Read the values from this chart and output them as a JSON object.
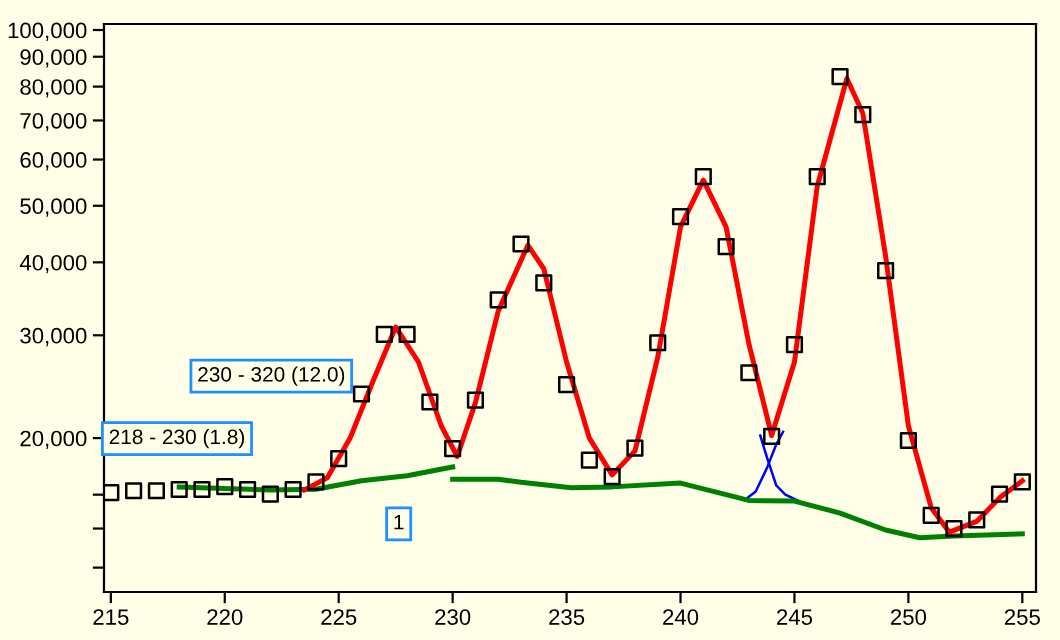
{
  "chart_data": {
    "type": "line",
    "log": "y",
    "grid": false,
    "xlim": [
      214.7,
      255.6
    ],
    "xticks": [
      215,
      220,
      225,
      230,
      235,
      240,
      245,
      250,
      255
    ],
    "ylim": [
      10900,
      102400
    ],
    "yticks": [
      {
        "value": 12000,
        "label": null
      },
      {
        "value": 14000,
        "label": null
      },
      {
        "value": 16000,
        "label": null
      },
      {
        "value": 20000,
        "label": "20,000"
      },
      {
        "value": 30000,
        "label": "30,000"
      },
      {
        "value": 40000,
        "label": "40,000"
      },
      {
        "value": 50000,
        "label": "50,000"
      },
      {
        "value": 60000,
        "label": "60,000"
      },
      {
        "value": 70000,
        "label": "70,000"
      },
      {
        "value": 80000,
        "label": "80,000"
      },
      {
        "value": 90000,
        "label": "90,000"
      },
      {
        "value": 100000,
        "label": "100,000"
      }
    ],
    "series": [
      {
        "type": "line",
        "color": "#008000",
        "marker": "none",
        "x": [
          218,
          220,
          222,
          224,
          226,
          228,
          230
        ],
        "values": [
          16490,
          16400,
          16300,
          16350,
          16900,
          17240,
          17850
        ]
      },
      {
        "type": "line",
        "color": "#008000",
        "marker": "none",
        "x": [
          230,
          232,
          233,
          235.2,
          237,
          240,
          243,
          245,
          247,
          249,
          250.5,
          252,
          255
        ],
        "values": [
          17000,
          17000,
          16800,
          16450,
          16500,
          16750,
          15640,
          15600,
          14880,
          13920,
          13500,
          13600,
          13710
        ]
      },
      {
        "type": "line",
        "color": "#0000ff",
        "marker": "none",
        "x": [
          242.8,
          243.3,
          243.8,
          244.2,
          244.5
        ],
        "values": [
          15650,
          16200,
          17800,
          19500,
          20500
        ]
      },
      {
        "type": "line",
        "color": "#0000ff",
        "marker": "none",
        "x": [
          243.5,
          243.8,
          244.2,
          244.6,
          245.2
        ],
        "values": [
          20200,
          18500,
          16600,
          16000,
          15600
        ]
      },
      {
        "type": "line",
        "color": "#ff0000",
        "marker": "none",
        "x": [
          223.5,
          224.5,
          225.5,
          226.5,
          227.5,
          228.5,
          229.5,
          230.2,
          231,
          232,
          233.3,
          234,
          235,
          236,
          237,
          238,
          239,
          240,
          241,
          242,
          243,
          244,
          245,
          246,
          247.3,
          248,
          249,
          250,
          251,
          251.8,
          253,
          254,
          255
        ],
        "values": [
          16300,
          17100,
          20000,
          25000,
          31000,
          27000,
          21000,
          18600,
          23000,
          33000,
          42800,
          39000,
          27000,
          20000,
          17300,
          19000,
          27500,
          46000,
          55300,
          46000,
          29000,
          20200,
          27000,
          54000,
          82600,
          72000,
          41000,
          21000,
          15200,
          13800,
          14400,
          15800,
          16900
        ]
      },
      {
        "type": "scatter",
        "color": "#000000",
        "marker": "square",
        "x": [
          215,
          216,
          217,
          218,
          219,
          220,
          221,
          222,
          223,
          224,
          225,
          226,
          227,
          228,
          229,
          230,
          231,
          232,
          233,
          234,
          235,
          236,
          237,
          238,
          239,
          240,
          241,
          242,
          243,
          244,
          245,
          246,
          247,
          248,
          249,
          250,
          251,
          252,
          253,
          254,
          255
        ],
        "values": [
          16130,
          16250,
          16250,
          16330,
          16330,
          16510,
          16330,
          16030,
          16330,
          16830,
          18440,
          23800,
          30100,
          30100,
          23060,
          19190,
          23230,
          34500,
          43000,
          36900,
          24700,
          18340,
          17180,
          19230,
          29130,
          47900,
          56100,
          42560,
          25880,
          20130,
          28910,
          56100,
          83200,
          71650,
          38730,
          19810,
          14750,
          13990,
          14490,
          16030,
          16830
        ]
      }
    ],
    "annotations": [
      "218 - 230 (1.8)",
      "230 - 320 (12.0)",
      "1"
    ]
  }
}
